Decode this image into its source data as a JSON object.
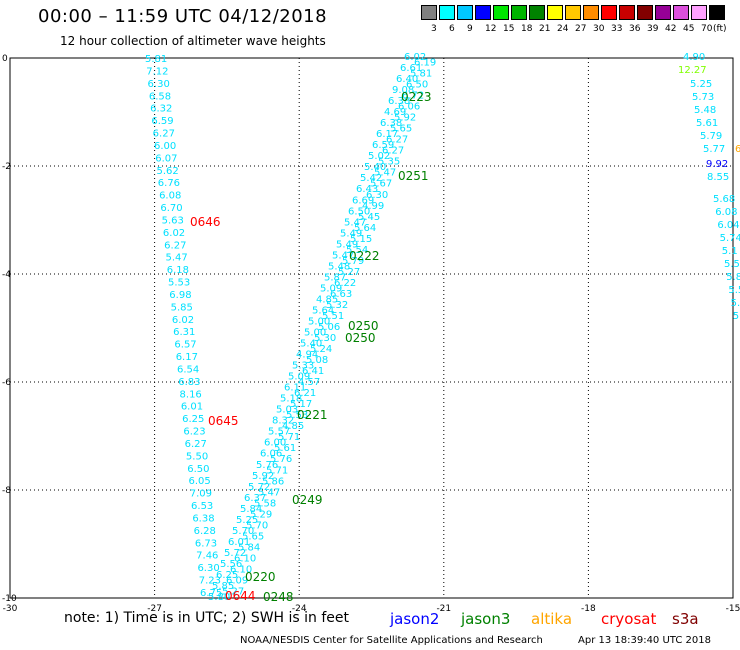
{
  "header": {
    "title": "00:00 – 11:59 UTC 04/12/2018",
    "subtitle": "12 hour collection of altimeter wave heights"
  },
  "legend": {
    "unit": "(ft)",
    "bins": [
      {
        "label": "3",
        "color": "#808080"
      },
      {
        "label": "6",
        "color": "#00ffff"
      },
      {
        "label": "9",
        "color": "#00c8ff"
      },
      {
        "label": "12",
        "color": "#0000ff"
      },
      {
        "label": "15",
        "color": "#00e600"
      },
      {
        "label": "18",
        "color": "#00b400"
      },
      {
        "label": "21",
        "color": "#008200"
      },
      {
        "label": "24",
        "color": "#ffff00"
      },
      {
        "label": "27",
        "color": "#ffc800"
      },
      {
        "label": "30",
        "color": "#ff8c00"
      },
      {
        "label": "33",
        "color": "#ff0000"
      },
      {
        "label": "36",
        "color": "#c80000"
      },
      {
        "label": "39",
        "color": "#820000"
      },
      {
        "label": "42",
        "color": "#960096"
      },
      {
        "label": "45",
        "color": "#dc50dc"
      },
      {
        "label": "70",
        "color": "#ffa0ff"
      },
      {
        "label": "",
        "color": "#000000"
      }
    ]
  },
  "axes": {
    "x_ticks": [
      "-30",
      "-27",
      "-24",
      "-21",
      "-18",
      "-15"
    ],
    "y_ticks": [
      "0",
      "-2",
      "-4",
      "-6",
      "-8",
      "-10"
    ]
  },
  "colors": {
    "cyan": "#00e0ff",
    "green": "#008000",
    "red": "#ff0000",
    "blue": "#0000ff",
    "orange": "#ffa500",
    "lime": "#80ff00"
  },
  "tracks": {
    "track1": [
      "5.81",
      "7.12",
      "6.30",
      "6.58",
      "6.32",
      "6.59",
      "6.27",
      "6.00",
      "6.07",
      "5.62",
      "6.76",
      "6.08",
      "6.70",
      "5.63",
      "6.02",
      "6.27",
      "5.47",
      "6.18",
      "5.53",
      "6.98",
      "5.85",
      "6.02",
      "6.31",
      "6.57",
      "6.17",
      "6.54",
      "6.83",
      "8.16",
      "6.01",
      "6.25",
      "6.23",
      "6.27",
      "5.50",
      "6.50",
      "6.05",
      "7.09",
      "6.53",
      "6.38",
      "6.28",
      "6.73",
      "7.46",
      "6.30",
      "7.23",
      "6.75"
    ],
    "track2a": [
      "6.02",
      "6.19",
      "6.61",
      "5.81",
      "6.40",
      "6.50",
      "9.08",
      "6.72",
      "6.38",
      "6.06",
      "4.69",
      "5.92",
      "6.38",
      "5.65",
      "6.17",
      "6.27",
      "6.59",
      "6.27",
      "5.02",
      "5.35",
      "5.40",
      "5.47",
      "5.42",
      "5.67",
      "6.43",
      "6.30",
      "6.69",
      "4.99",
      "6.50",
      "5.45",
      "5.47",
      "5.64",
      "5.49",
      "5.15",
      "5.49",
      "5.54",
      "5.47",
      "5.79",
      "5.48",
      "5.27",
      "5.87",
      "6.22",
      "5.09",
      "6.63",
      "4.85",
      "5.32",
      "5.64",
      "5.51",
      "5.00",
      "5.06",
      "5.00",
      "5.30",
      "5.40",
      "5.24",
      "4.94",
      "5.08",
      "5.33",
      "6.41",
      "5.09",
      "4.57",
      "6.11",
      "6.21",
      "5.18",
      "5.17",
      "5.03",
      "5.53",
      "8.32",
      "4.85",
      "5.57",
      "5.71",
      "6.00",
      "5.61",
      "6.06",
      "5.76",
      "5.76",
      "5.71",
      "5.92",
      "5.86",
      "5.72",
      "5.47",
      "6.37",
      "5.58",
      "5.84",
      "5.29",
      "5.25",
      "5.70",
      "5.70",
      "5.65",
      "6.01",
      "5.84",
      "5.72",
      "6.10",
      "5.56",
      "6.10",
      "6.25",
      "6.09",
      "5.85",
      "5.27",
      "5.80"
    ],
    "track3_top": [
      "4.90",
      "12.27",
      "5.25",
      "5.73",
      "5.48",
      "5.61",
      "5.79",
      "5.77",
      "9.92",
      "8.55"
    ],
    "track3_bot": [
      "5.68",
      "6.08",
      "6.04",
      "5.74",
      "5.1",
      "5.5",
      "5.8",
      "5.5",
      "5.4",
      "5.3"
    ]
  },
  "time_labels": [
    {
      "text": "0223",
      "sat": "jason3"
    },
    {
      "text": "0251",
      "sat": "jason3"
    },
    {
      "text": "0646",
      "sat": "cryosat"
    },
    {
      "text": "0222",
      "sat": "jason3"
    },
    {
      "text": "0250",
      "sat": "jason3"
    },
    {
      "text": "0250",
      "sat": "jason3"
    },
    {
      "text": "0645",
      "sat": "cryosat"
    },
    {
      "text": "0221",
      "sat": "jason3"
    },
    {
      "text": "0249",
      "sat": "jason3"
    },
    {
      "text": "0220",
      "sat": "jason3"
    },
    {
      "text": "0644",
      "sat": "cryosat"
    },
    {
      "text": "0248",
      "sat": "jason3"
    }
  ],
  "footer": {
    "note": "note: 1) Time is in UTC; 2) SWH is in feet",
    "satellites": [
      {
        "name": "jason2",
        "color": "#0000ff"
      },
      {
        "name": "jason3",
        "color": "#008000"
      },
      {
        "name": "altika",
        "color": "#ffa500"
      },
      {
        "name": "cryosat",
        "color": "#ff0000"
      },
      {
        "name": "s3a",
        "color": "#800000"
      }
    ],
    "credit": "NOAA/NESDIS Center for Satellite Applications and Research",
    "timestamp": "Apr 13 18:39:40 UTC 2018"
  }
}
